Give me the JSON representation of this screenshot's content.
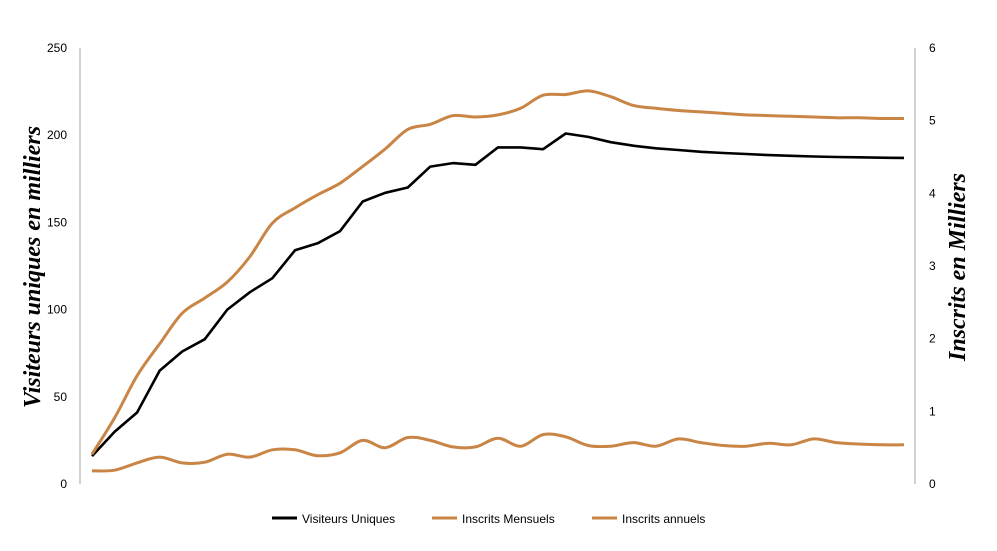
{
  "chart_data": {
    "type": "line",
    "title": "",
    "xlabel": "",
    "ylabel": "Visiteurs uniques en milliers",
    "y2label": "Inscrits en Milliers",
    "ylim": [
      0,
      250
    ],
    "y2lim": [
      0,
      6
    ],
    "yticks": [
      "0",
      "50",
      "100",
      "150",
      "200",
      "250"
    ],
    "y2ticks": [
      "0",
      "1",
      "2",
      "3",
      "4",
      "5",
      "6"
    ],
    "grid": false,
    "legend_position": "bottom",
    "n_points": 37,
    "series": [
      {
        "name": "Visiteurs Uniques",
        "axis": "left",
        "color": "#000000",
        "values": [
          16,
          30,
          41,
          65,
          76,
          83,
          100,
          110,
          118,
          134,
          138,
          145,
          162,
          167,
          170,
          182,
          184,
          183,
          193,
          193,
          192,
          201,
          199,
          196,
          194,
          192.5,
          191.5,
          190.5,
          189.8,
          189.2,
          188.6,
          188.2,
          187.8,
          187.5,
          187.3,
          187.1,
          187
        ]
      },
      {
        "name": "Inscrits Mensuels",
        "axis": "right",
        "color": "#c98546",
        "values": [
          0.41,
          0.91,
          1.49,
          1.93,
          2.35,
          2.56,
          2.78,
          3.13,
          3.59,
          3.8,
          3.98,
          4.14,
          4.37,
          4.61,
          4.88,
          4.95,
          5.07,
          5.05,
          5.08,
          5.17,
          5.35,
          5.36,
          5.41,
          5.33,
          5.21,
          5.17,
          5.14,
          5.12,
          5.1,
          5.08,
          5.07,
          5.06,
          5.05,
          5.04,
          5.04,
          5.03,
          5.03
        ]
      },
      {
        "name": "Inscrits annuels",
        "axis": "right",
        "color": "#c98546",
        "values": [
          0.18,
          0.19,
          0.29,
          0.37,
          0.29,
          0.3,
          0.41,
          0.37,
          0.47,
          0.47,
          0.39,
          0.43,
          0.6,
          0.5,
          0.64,
          0.6,
          0.51,
          0.51,
          0.63,
          0.52,
          0.68,
          0.65,
          0.53,
          0.52,
          0.57,
          0.52,
          0.62,
          0.57,
          0.53,
          0.52,
          0.56,
          0.54,
          0.62,
          0.57,
          0.55,
          0.54,
          0.54
        ]
      }
    ]
  }
}
